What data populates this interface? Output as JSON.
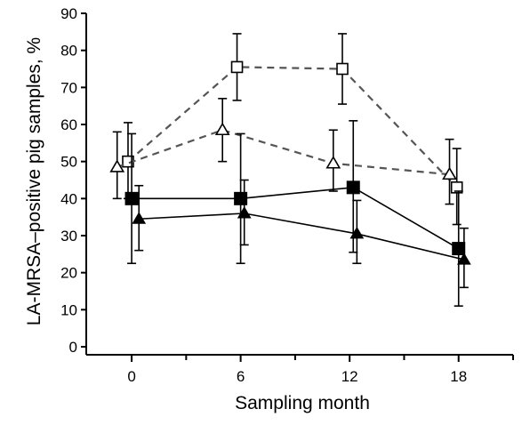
{
  "chart_data": {
    "type": "line",
    "title": "",
    "xlabel": "Sampling month",
    "ylabel": "LA-MRSA–positive pig samples, %",
    "x_ticks": [
      "0",
      "6",
      "12",
      "18"
    ],
    "x_tick_values": [
      0,
      6,
      12,
      18
    ],
    "xlim": [
      -2.5,
      21
    ],
    "ylim": [
      0,
      90
    ],
    "y_ticks": [
      "0",
      "10",
      "20",
      "30",
      "40",
      "50",
      "60",
      "70",
      "80",
      "90"
    ],
    "y_tick_values": [
      0,
      10,
      20,
      30,
      40,
      50,
      60,
      70,
      80,
      90
    ],
    "grid": false,
    "legend": false,
    "series": [
      {
        "marker": "square-open",
        "line_style": "dashed",
        "color": "#555555",
        "x": [
          -0.2,
          5.8,
          11.6,
          17.9
        ],
        "y": [
          50,
          75.5,
          75,
          43
        ],
        "err_low": [
          40,
          66.5,
          65.5,
          33
        ],
        "err_high": [
          60.5,
          84.5,
          84.5,
          53.5
        ]
      },
      {
        "marker": "triangle-open",
        "line_style": "dashed",
        "color": "#555555",
        "x": [
          -0.8,
          5.0,
          11.1,
          17.5
        ],
        "y": [
          48.5,
          58.5,
          49.5,
          46.5
        ],
        "err_low": [
          40,
          50,
          42,
          38.5
        ],
        "err_high": [
          58,
          67,
          58.5,
          56
        ]
      },
      {
        "marker": "square-filled",
        "line_style": "solid",
        "color": "#000000",
        "x": [
          0.0,
          6.0,
          12.2,
          18.0
        ],
        "y": [
          40,
          40,
          43,
          26.5
        ],
        "err_low": [
          22.5,
          22.5,
          25.5,
          11
        ],
        "err_high": [
          57.5,
          57.5,
          61,
          42
        ]
      },
      {
        "marker": "triangle-filled",
        "line_style": "solid",
        "color": "#000000",
        "x": [
          0.4,
          6.2,
          12.4,
          18.3
        ],
        "y": [
          34.5,
          36,
          30.5,
          23.5
        ],
        "err_low": [
          26,
          27.5,
          22.5,
          16
        ],
        "err_high": [
          43.5,
          45,
          39.5,
          32
        ]
      }
    ]
  }
}
